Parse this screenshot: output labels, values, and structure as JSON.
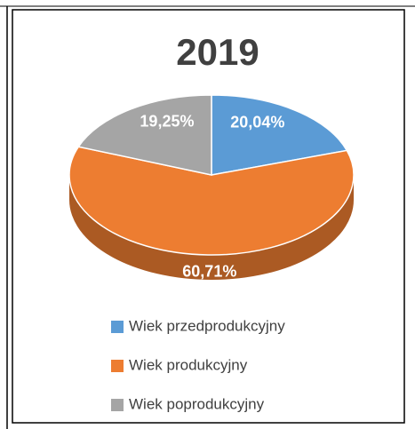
{
  "chart_data": {
    "type": "pie",
    "title": "2019",
    "categories": [
      "Wiek przedprodukcyjny",
      "Wiek produkcyjny",
      "Wiek poprodukcyjny"
    ],
    "values": [
      20.04,
      60.71,
      19.25
    ],
    "value_labels": [
      "20,04%",
      "60,71%",
      "19,25%"
    ],
    "colors": [
      "#5b9bd5",
      "#ed7d31",
      "#a5a5a5"
    ],
    "legend": "bottom"
  }
}
